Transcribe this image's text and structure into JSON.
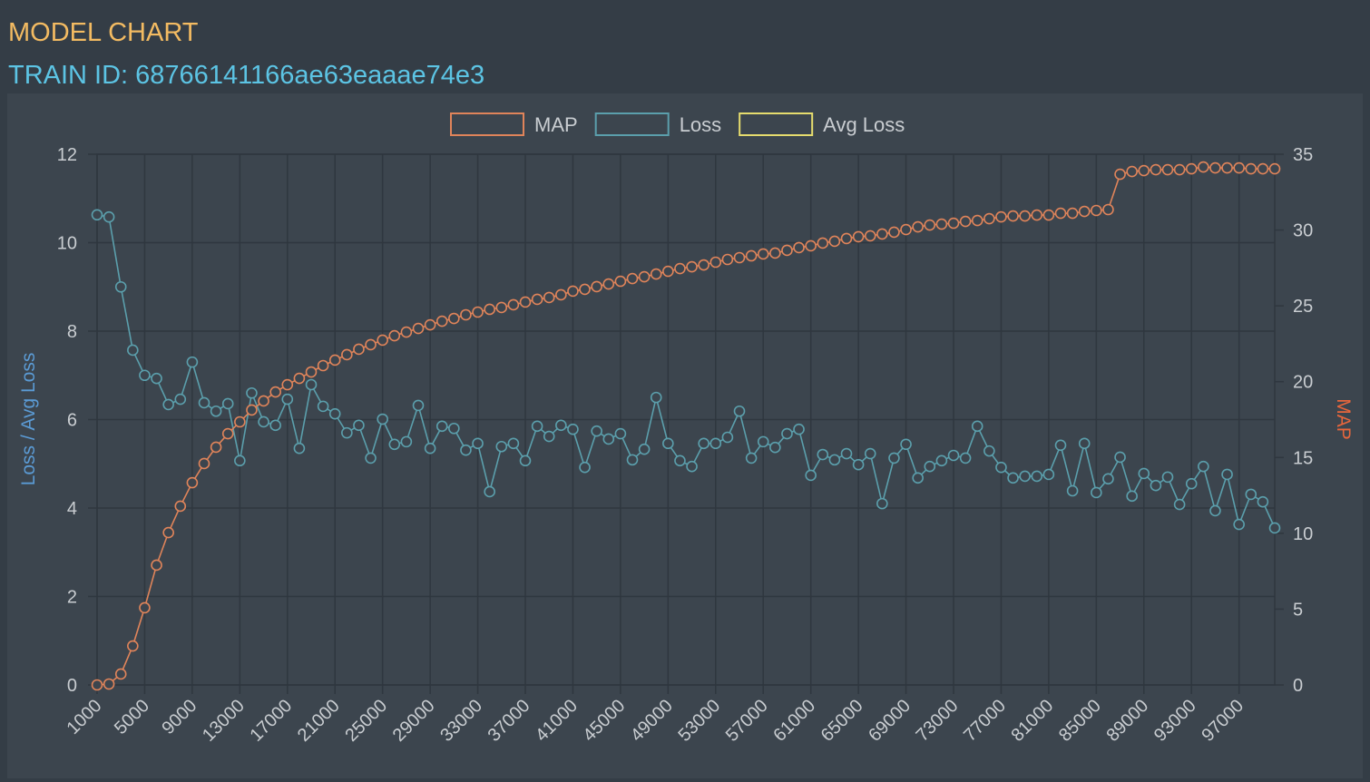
{
  "chart_data": {
    "type": "line",
    "title": "MODEL CHART",
    "subtitle": "TRAIN ID: 68766141166ae63eaaae74e3",
    "y_label": "Loss / Avg Loss",
    "y2_label": "MAP",
    "x": [
      1000,
      2000,
      3000,
      4000,
      5000,
      6000,
      7000,
      8000,
      9000,
      10000,
      11000,
      12000,
      13000,
      14000,
      15000,
      16000,
      17000,
      18000,
      19000,
      20000,
      21000,
      22000,
      23000,
      24000,
      25000,
      26000,
      27000,
      28000,
      29000,
      30000,
      31000,
      32000,
      33000,
      34000,
      35000,
      36000,
      37000,
      38000,
      39000,
      40000,
      41000,
      42000,
      43000,
      44000,
      45000,
      46000,
      47000,
      48000,
      49000,
      50000,
      51000,
      52000,
      53000,
      54000,
      55000,
      56000,
      57000,
      58000,
      59000,
      60000,
      61000,
      62000,
      63000,
      64000,
      65000,
      66000,
      67000,
      68000,
      69000,
      70000,
      71000,
      72000,
      73000,
      74000,
      75000,
      76000,
      77000,
      78000,
      79000,
      80000,
      81000,
      82000,
      83000,
      84000,
      85000,
      86000,
      87000,
      88000,
      89000,
      90000,
      91000,
      92000,
      93000,
      94000,
      95000,
      96000,
      97000,
      98000,
      99000,
      100000
    ],
    "xlim": [
      1000,
      100000
    ],
    "xticks": [
      1000,
      5000,
      9000,
      13000,
      17000,
      21000,
      25000,
      29000,
      33000,
      37000,
      41000,
      45000,
      49000,
      53000,
      57000,
      61000,
      65000,
      69000,
      73000,
      77000,
      81000,
      85000,
      89000,
      93000,
      97000
    ],
    "ylim": [
      0,
      12
    ],
    "yticks": [
      0,
      2,
      4,
      6,
      8,
      10,
      12
    ],
    "y2lim": [
      0,
      35
    ],
    "y2ticks": [
      0,
      5,
      10,
      15,
      20,
      25,
      30,
      35
    ],
    "grid": true,
    "legend": "top",
    "series": [
      {
        "name": "MAP",
        "color": "#e0845a",
        "axis": "y2",
        "values": [
          0,
          0.06,
          0.72,
          2.57,
          5.09,
          7.9,
          10.05,
          11.79,
          13.34,
          14.6,
          15.68,
          16.57,
          17.35,
          18.13,
          18.73,
          19.32,
          19.8,
          20.22,
          20.64,
          21.06,
          21.42,
          21.78,
          22.14,
          22.44,
          22.74,
          23.03,
          23.27,
          23.51,
          23.75,
          23.99,
          24.17,
          24.41,
          24.59,
          24.77,
          24.89,
          25.07,
          25.25,
          25.43,
          25.55,
          25.73,
          25.97,
          26.09,
          26.27,
          26.44,
          26.62,
          26.8,
          26.92,
          27.1,
          27.28,
          27.46,
          27.58,
          27.7,
          27.88,
          28.06,
          28.18,
          28.3,
          28.42,
          28.48,
          28.66,
          28.84,
          28.96,
          29.14,
          29.26,
          29.44,
          29.56,
          29.62,
          29.74,
          29.86,
          30.03,
          30.21,
          30.33,
          30.39,
          30.45,
          30.57,
          30.63,
          30.75,
          30.87,
          30.93,
          30.93,
          30.99,
          30.99,
          31.11,
          31.11,
          31.23,
          31.29,
          31.35,
          33.68,
          33.86,
          33.92,
          33.98,
          33.98,
          33.98,
          34.04,
          34.16,
          34.1,
          34.1,
          34.1,
          34.04,
          34.04,
          34.04
        ]
      },
      {
        "name": "Loss",
        "color": "#5b9fac",
        "values": [
          10.63,
          10.58,
          9.0,
          7.57,
          7.0,
          6.93,
          6.34,
          6.46,
          7.3,
          6.38,
          6.19,
          6.36,
          5.07,
          6.6,
          5.95,
          5.87,
          6.46,
          5.35,
          6.79,
          6.3,
          6.13,
          5.7,
          5.87,
          5.13,
          6.01,
          5.44,
          5.5,
          6.32,
          5.35,
          5.85,
          5.8,
          5.31,
          5.46,
          4.37,
          5.39,
          5.46,
          5.07,
          5.85,
          5.62,
          5.87,
          5.78,
          4.92,
          5.74,
          5.56,
          5.68,
          5.09,
          5.33,
          6.5,
          5.46,
          5.07,
          4.94,
          5.46,
          5.46,
          5.6,
          6.19,
          5.13,
          5.5,
          5.37,
          5.68,
          5.78,
          4.74,
          5.21,
          5.09,
          5.23,
          4.98,
          5.23,
          4.1,
          5.13,
          5.44,
          4.68,
          4.94,
          5.07,
          5.19,
          5.13,
          5.85,
          5.29,
          4.92,
          4.68,
          4.72,
          4.72,
          4.76,
          5.42,
          4.39,
          5.46,
          4.35,
          4.66,
          5.15,
          4.27,
          4.78,
          4.51,
          4.7,
          4.08,
          4.55,
          4.94,
          3.94,
          4.76,
          3.63,
          4.31,
          4.14,
          3.55
        ]
      },
      {
        "name": "Avg Loss",
        "color": "#e6dc6e",
        "values": [
          null,
          null,
          null,
          null,
          null,
          null,
          null,
          null,
          null,
          null,
          null,
          null,
          null,
          null,
          null,
          null,
          null,
          null,
          null,
          null,
          null,
          null,
          null,
          null,
          null,
          null,
          null,
          null,
          null,
          null,
          null,
          null,
          null,
          null,
          null,
          null,
          null,
          null,
          null,
          null,
          null,
          null,
          null,
          null,
          null,
          null,
          null,
          null,
          null,
          null,
          null,
          null,
          null,
          null,
          null,
          null,
          null,
          null,
          null,
          null,
          null,
          null,
          null,
          null,
          null,
          null,
          null,
          null,
          null,
          null,
          null,
          null,
          null,
          null,
          null,
          null,
          null,
          null,
          null,
          null,
          null,
          null,
          null,
          null,
          null,
          null,
          null,
          null,
          null,
          null,
          null,
          null,
          null,
          null,
          null,
          null,
          null,
          null,
          null,
          null
        ]
      }
    ]
  }
}
